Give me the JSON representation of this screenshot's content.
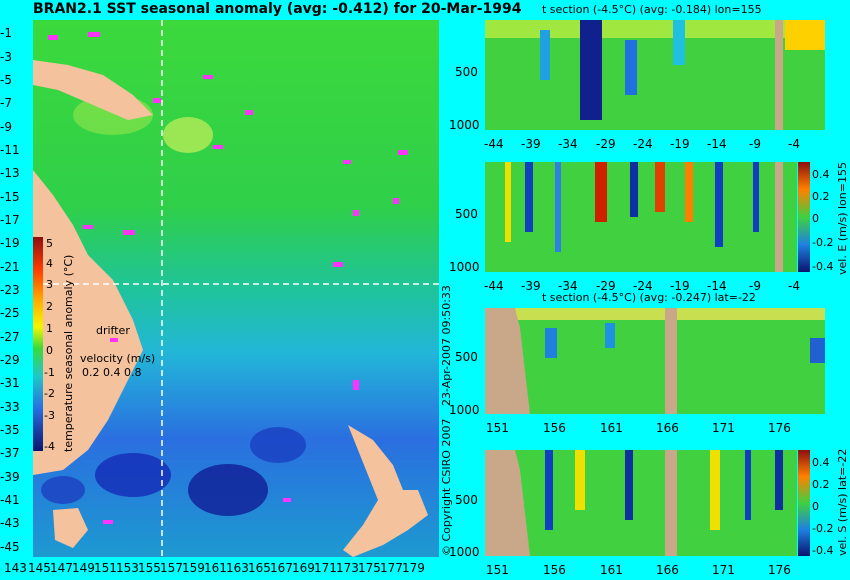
{
  "header": {
    "title": "BRAN2.1 SST seasonal anomaly (avg: -0.412) for 20-Mar-1994"
  },
  "map": {
    "lat_ticks": [
      "-1",
      "-3",
      "-5",
      "-7",
      "-9",
      "-11",
      "-13",
      "-15",
      "-17",
      "-19",
      "-21",
      "-23",
      "-25",
      "-27",
      "-29",
      "-31",
      "-33",
      "-35",
      "-37",
      "-39",
      "-41",
      "-43",
      "-45"
    ],
    "lon_ticks": [
      "143",
      "145",
      "147",
      "149",
      "151",
      "153",
      "155",
      "157",
      "159",
      "161",
      "163",
      "165",
      "167",
      "169",
      "171",
      "173",
      "175",
      "177",
      "179"
    ],
    "colorbar_label": "temperature seasonal anomaly (°C)",
    "colorbar_ticks": [
      "5",
      "4",
      "3",
      "2",
      "1",
      "0",
      "-1",
      "-2",
      "-3",
      "-4"
    ],
    "drifter_label": "drifter",
    "velocity_label": "velocity (m/s)",
    "velocity_ticks": "0.2 0.4 0.8",
    "land_color": "#f5c29e",
    "crosshair_color": "#ffffff"
  },
  "panels": {
    "p1": {
      "title": "t section (-4.5°C) (avg: -0.184) lon=155",
      "y_ticks": [
        "500",
        "1000"
      ],
      "x_ticks": [
        "-44",
        "-39",
        "-34",
        "-29",
        "-24",
        "-19",
        "-14",
        "-9",
        "-4"
      ]
    },
    "p2": {
      "y_ticks": [
        "500",
        "1000"
      ],
      "x_ticks": [
        "-44",
        "-39",
        "-34",
        "-29",
        "-24",
        "-19",
        "-14",
        "-9",
        "-4"
      ],
      "side_label": "vel. E (m/s) lon=155",
      "cbar_ticks": [
        "0.4",
        "0.2",
        "0",
        "-0.2",
        "-0.4"
      ]
    },
    "p3": {
      "title": "t section (-4.5°C) (avg: -0.247) lat=-22",
      "y_ticks": [
        "500",
        "1000"
      ],
      "x_ticks": [
        "151",
        "156",
        "161",
        "166",
        "171",
        "176"
      ]
    },
    "p4": {
      "y_ticks": [
        "500",
        "1000"
      ],
      "x_ticks": [
        "151",
        "156",
        "161",
        "166",
        "171",
        "176"
      ],
      "side_label": "vel. S (m/s) lat=-22",
      "cbar_ticks": [
        "0.4",
        "0.2",
        "0",
        "-0.2",
        "-0.4"
      ]
    }
  },
  "footer": {
    "date_stamp": "23-Apr-2007 09:50:33",
    "copyright": "© Copyright CSIRO 2007"
  }
}
